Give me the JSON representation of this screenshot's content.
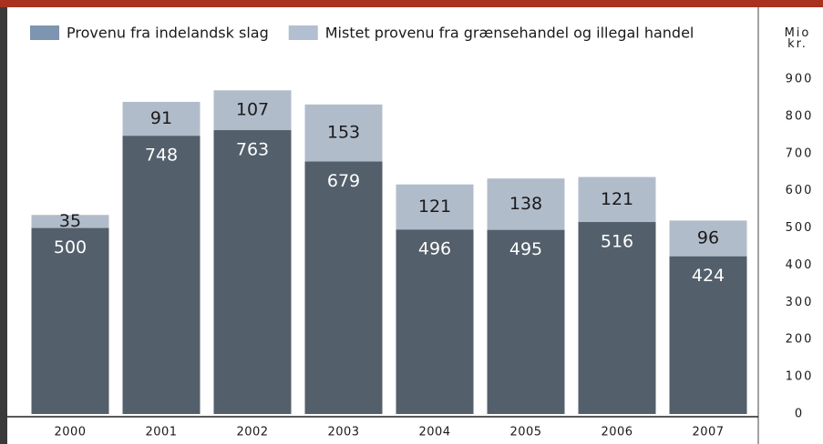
{
  "chart_data": {
    "type": "stacked_bar",
    "ylabel": "Mio kr.",
    "categories": [
      "2000",
      "2001",
      "2002",
      "2003",
      "2004",
      "2005",
      "2006",
      "2007"
    ],
    "series": [
      {
        "name": "Provenu fra indelandsk slag",
        "color": "#535f6b",
        "legend_color": "#7d95b0",
        "values": [
          500,
          748,
          763,
          679,
          496,
          495,
          516,
          424
        ]
      },
      {
        "name": "Mistet provenu fra grænsehandel og illegal handel",
        "color": "#b1bccb",
        "legend_color": "#b1bfd0",
        "values": [
          35,
          91,
          107,
          153,
          121,
          138,
          121,
          96
        ]
      }
    ],
    "ylim": [
      0,
      900
    ],
    "yticks": [
      0,
      100,
      200,
      300,
      400,
      500,
      600,
      700,
      800,
      900
    ],
    "grid": false
  }
}
